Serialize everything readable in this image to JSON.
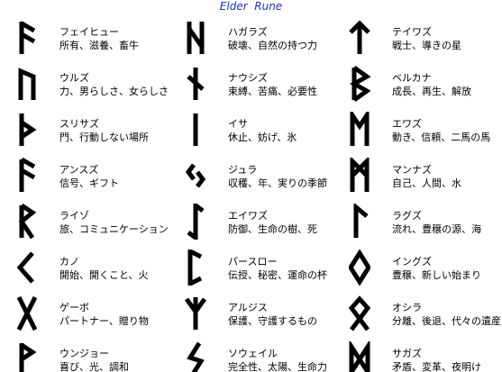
{
  "title": "Elder  Rune",
  "runes": [
    {
      "name": "フェイヒュー",
      "meaning": "所有、滋養、畜牛"
    },
    {
      "name": "ハガラズ",
      "meaning": "破壊、自然の持つ力"
    },
    {
      "name": "テイワズ",
      "meaning": "戦士、導きの星"
    },
    {
      "name": "ウルズ",
      "meaning": "力、男らしさ、女らしさ"
    },
    {
      "name": "ナウシズ",
      "meaning": "束縛、苦痛、必要性"
    },
    {
      "name": "ベルカナ",
      "meaning": "成長、再生、解放"
    },
    {
      "name": "スリサズ",
      "meaning": "門、行動しない場所"
    },
    {
      "name": "イサ",
      "meaning": "休止、妨げ、氷"
    },
    {
      "name": "エワズ",
      "meaning": "動き、信頼、二馬の馬"
    },
    {
      "name": "アンスズ",
      "meaning": "信号、ギフト"
    },
    {
      "name": "ジュラ",
      "meaning": "収穫、年、実りの季節"
    },
    {
      "name": "マンナズ",
      "meaning": "自己、人間、水"
    },
    {
      "name": "ライゾ",
      "meaning": "旅、コミュニケーション"
    },
    {
      "name": "エイワズ",
      "meaning": "防御、生命の樹、死"
    },
    {
      "name": "ラグズ",
      "meaning": "流れ、豊穣の源、海"
    },
    {
      "name": "カノ",
      "meaning": "開始、開くこと、火"
    },
    {
      "name": "パースロー",
      "meaning": "伝授、秘密、運命の杯"
    },
    {
      "name": "イングズ",
      "meaning": "豊穣、新しい始まり"
    },
    {
      "name": "ゲーボ",
      "meaning": "パートナー、贈り物"
    },
    {
      "name": "アルジス",
      "meaning": "保護、守護するもの"
    },
    {
      "name": "オシラ",
      "meaning": "分離、後退、代々の遺産"
    },
    {
      "name": "ウンジョー",
      "meaning": "喜び、光、調和"
    },
    {
      "name": "ソウェイル",
      "meaning": "完全性、太陽、生命力"
    },
    {
      "name": "サガズ",
      "meaning": "矛盾、変革、夜明け"
    }
  ]
}
